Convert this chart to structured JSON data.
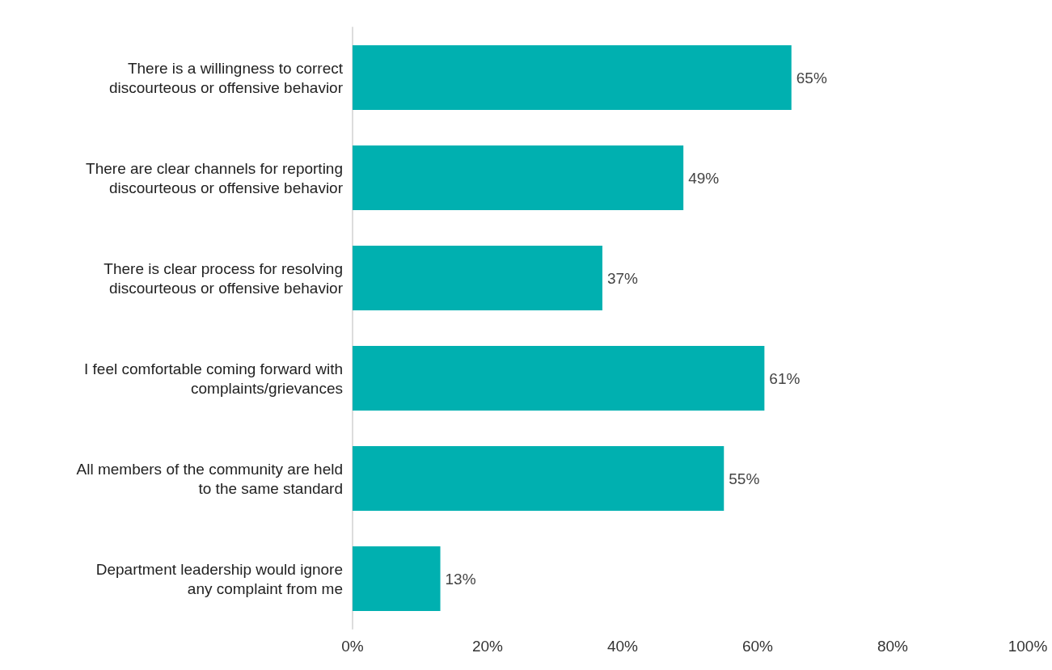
{
  "chart_data": {
    "type": "bar",
    "orientation": "horizontal",
    "categories": [
      "There is a willingness to correct\ndiscourteous or offensive behavior",
      "There are clear channels for reporting\ndiscourteous or offensive behavior",
      "There is clear process for resolving\ndiscourteous or offensive behavior",
      "I feel comfortable coming forward with\ncomplaints/grievances",
      "All members of the community are held\nto the same standard",
      "Department leadership would ignore\nany complaint from me"
    ],
    "values": [
      65,
      49,
      37,
      61,
      55,
      13
    ],
    "value_labels": [
      "65%",
      "49%",
      "37%",
      "61%",
      "55%",
      "13%"
    ],
    "color": "#00b0b0",
    "xlim": [
      0,
      100
    ],
    "xticks": [
      {
        "value": 0,
        "label": "0%"
      },
      {
        "value": 20,
        "label": "20%"
      },
      {
        "value": 40,
        "label": "40%"
      },
      {
        "value": 60,
        "label": "60%"
      },
      {
        "value": 80,
        "label": "80%"
      },
      {
        "value": 100,
        "label": "100%"
      }
    ],
    "grid": false
  }
}
